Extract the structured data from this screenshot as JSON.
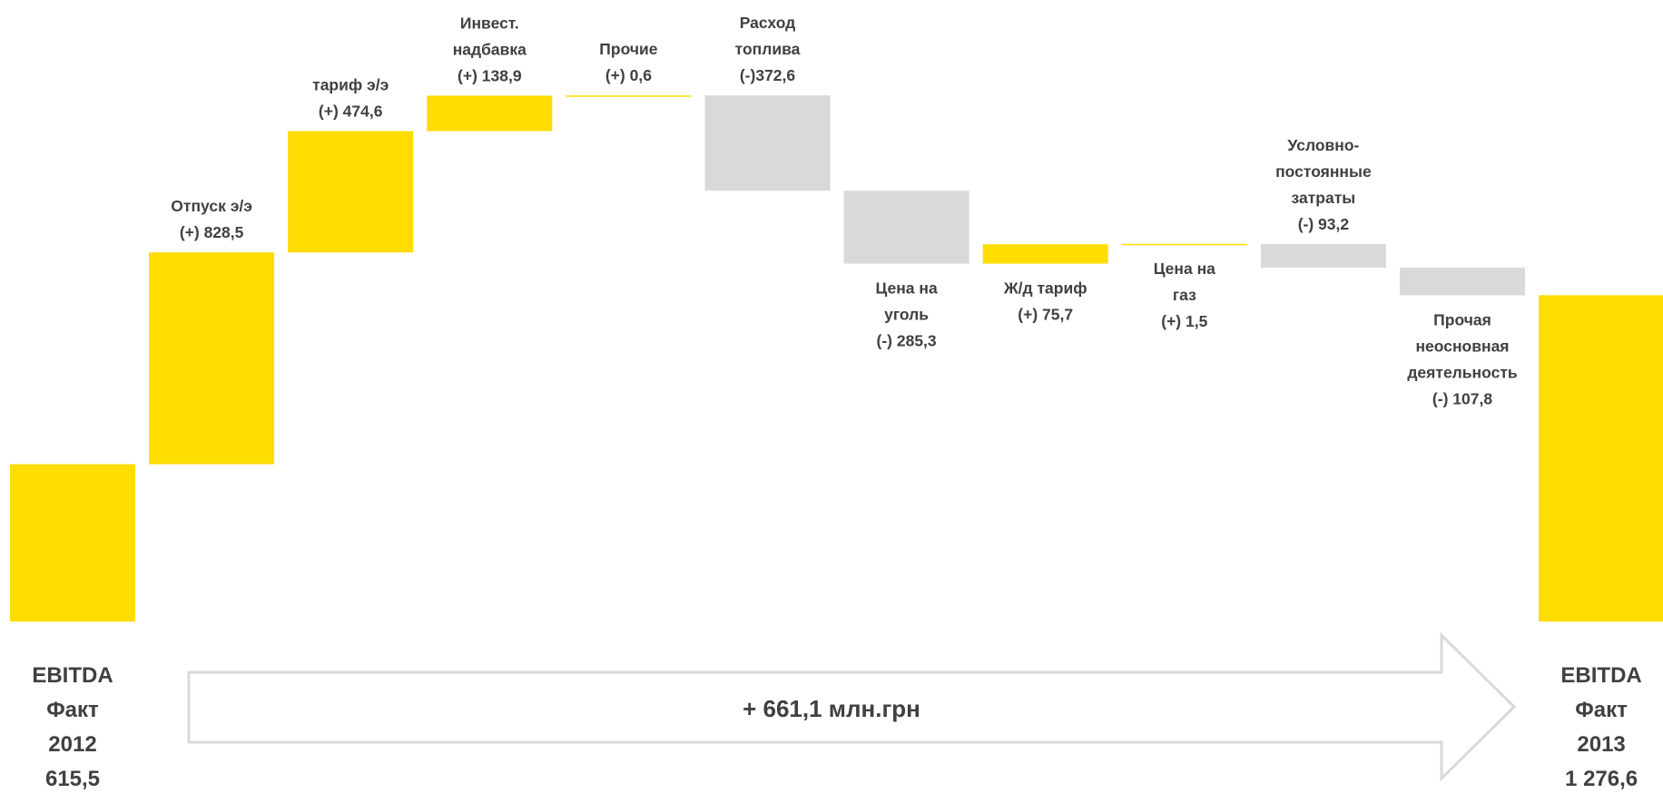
{
  "chart_data": {
    "type": "waterfall",
    "units": "млн.грн",
    "colors": {
      "increase": "#FFDD00",
      "decrease": "#D9D9D9",
      "total": "#FFDD00",
      "text": "#404040",
      "arrow_stroke": "#D9D9D9"
    },
    "bars": [
      {
        "kind": "total",
        "value": 615.5,
        "label": [
          "EBITDA",
          "Факт",
          "2012",
          "615,5"
        ]
      },
      {
        "kind": "delta",
        "value": 828.5,
        "label": [
          "Отпуск э/э",
          "(+) 828,5"
        ]
      },
      {
        "kind": "delta",
        "value": 474.6,
        "label": [
          "тариф э/э",
          "(+) 474,6"
        ]
      },
      {
        "kind": "delta",
        "value": 138.9,
        "label": [
          "Инвест.",
          "надбавка",
          "(+) 138,9"
        ]
      },
      {
        "kind": "delta",
        "value": 0.6,
        "label": [
          "Прочие",
          "(+) 0,6"
        ]
      },
      {
        "kind": "delta",
        "value": -372.6,
        "label": [
          "Расход",
          "топлива",
          "(-)372,6"
        ]
      },
      {
        "kind": "delta",
        "value": -285.3,
        "label": [
          "Цена на",
          "уголь",
          "(-) 285,3"
        ]
      },
      {
        "kind": "delta",
        "value": 75.7,
        "label": [
          "Ж/д тариф",
          "(+) 75,7"
        ]
      },
      {
        "kind": "delta",
        "value": 1.5,
        "label": [
          "Цена на",
          "газ",
          "(+) 1,5"
        ]
      },
      {
        "kind": "delta",
        "value": -93.2,
        "label": [
          "Условно-",
          "постоянные",
          "затраты",
          "(-) 93,2"
        ]
      },
      {
        "kind": "delta",
        "value": -107.8,
        "label": [
          "Прочая",
          "неосновная",
          "деятельность",
          "(-) 107,8"
        ]
      },
      {
        "kind": "total",
        "value": 1276.6,
        "label": [
          "EBITDA",
          "Факт",
          "2013",
          "1 276,6"
        ]
      }
    ],
    "summary_arrow": "+ 661,1  млн.грн"
  }
}
